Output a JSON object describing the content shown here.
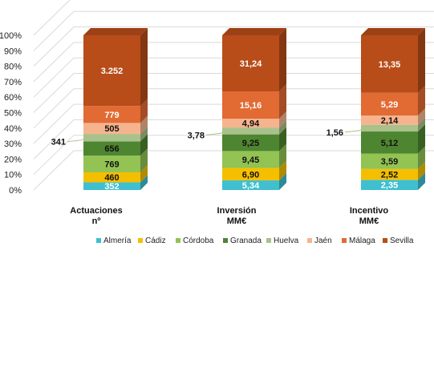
{
  "chart_data": {
    "type": "bar",
    "stacked": "100%",
    "three_d": true,
    "categories": [
      {
        "line1": "Actuaciones",
        "line2": "nº"
      },
      {
        "line1": "Inversión",
        "line2": "MM€"
      },
      {
        "line1": "Incentivo",
        "line2": "MM€"
      }
    ],
    "series": [
      {
        "name": "Almería",
        "color": "#3fbfd0",
        "values": [
          352,
          5.34,
          2.35
        ],
        "labels": [
          "352",
          "5,34",
          "2,35"
        ]
      },
      {
        "name": "Cádiz",
        "color": "#f5bf00",
        "values": [
          460,
          6.9,
          2.52
        ],
        "labels": [
          "460",
          "6,90",
          "2,52"
        ]
      },
      {
        "name": "Córdoba",
        "color": "#92c353",
        "values": [
          769,
          9.45,
          3.59
        ],
        "labels": [
          "769",
          "9,45",
          "3,59"
        ]
      },
      {
        "name": "Granada",
        "color": "#4e8531",
        "values": [
          656,
          9.25,
          5.12
        ],
        "labels": [
          "656",
          "9,25",
          "5,12"
        ]
      },
      {
        "name": "Huelva",
        "color": "#a9c18a",
        "values": [
          341,
          3.78,
          1.56
        ],
        "labels": [
          "341",
          "3,78",
          "1,56"
        ]
      },
      {
        "name": "Jaén",
        "color": "#f6b48e",
        "values": [
          505,
          4.94,
          2.14
        ],
        "labels": [
          "505",
          "4,94",
          "2,14"
        ]
      },
      {
        "name": "Málaga",
        "color": "#e26a33",
        "values": [
          779,
          15.16,
          5.29
        ],
        "labels": [
          "779",
          "15,16",
          "5,29"
        ]
      },
      {
        "name": "Sevilla",
        "color": "#b84d1a",
        "values": [
          3252,
          31.24,
          13.35
        ],
        "labels": [
          "3.252",
          "31,24",
          "13,35"
        ]
      }
    ],
    "y_ticks": [
      "0%",
      "10%",
      "20%",
      "30%",
      "40%",
      "50%",
      "60%",
      "70%",
      "80%",
      "90%",
      "100%"
    ],
    "ylim": [
      0,
      100
    ],
    "grid": true,
    "legend": "bottom"
  }
}
